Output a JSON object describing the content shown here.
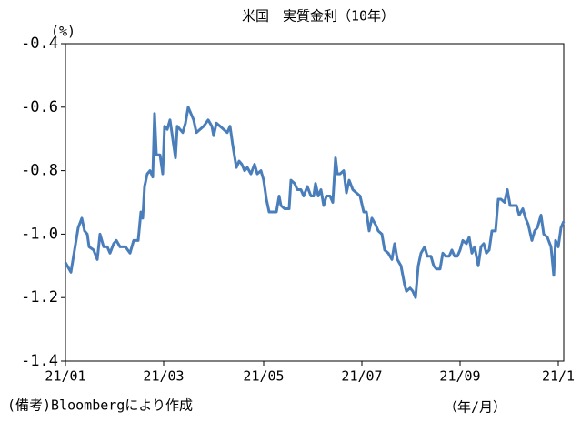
{
  "chart_data": {
    "type": "line",
    "title": "米国　実質金利（10年）",
    "y_label": "(%)",
    "x_label": "（年/月）",
    "note": "(備考)Bloombergにより作成",
    "color": "#4a7ebb",
    "x": [
      0,
      6,
      10,
      14,
      18,
      21,
      24,
      26,
      31,
      35,
      38,
      42,
      46,
      49,
      53,
      56,
      60,
      66,
      71,
      75,
      80,
      83,
      85,
      87,
      90,
      93,
      96,
      98,
      100,
      104,
      107,
      109,
      112,
      115,
      118,
      121,
      123,
      126,
      129,
      132,
      135,
      138,
      141,
      144,
      148,
      152,
      157,
      161,
      163,
      166,
      170,
      174,
      178,
      181,
      184,
      188,
      191,
      194,
      197,
      200,
      204,
      208,
      211,
      215,
      218,
      221,
      224,
      228,
      232,
      235,
      237,
      241,
      246,
      248,
      252,
      255,
      259,
      262,
      266,
      270,
      273,
      275,
      278,
      281,
      284,
      287,
      291,
      294,
      297,
      299,
      302,
      306,
      309,
      312,
      316,
      320,
      324,
      328,
      331,
      334,
      337,
      341,
      344,
      348,
      351,
      355,
      359,
      362,
      365,
      369,
      373,
      375,
      379,
      382,
      385,
      388,
      391,
      395,
      398,
      402,
      405,
      408,
      412,
      415,
      418,
      422,
      425,
      428,
      431,
      434,
      437,
      441,
      444,
      447,
      450,
      454,
      457,
      460,
      463,
      466,
      469,
      473,
      476,
      479,
      483,
      486,
      489,
      493,
      496,
      499,
      503,
      506,
      509,
      513,
      516,
      519,
      523,
      526,
      530,
      534,
      537,
      539,
      542,
      545,
      548
    ],
    "values": [
      -1.09,
      -1.12,
      -1.05,
      -0.98,
      -0.95,
      -0.99,
      -1.0,
      -1.04,
      -1.05,
      -1.08,
      -1.0,
      -1.04,
      -1.04,
      -1.06,
      -1.03,
      -1.02,
      -1.04,
      -1.04,
      -1.06,
      -1.02,
      -1.02,
      -0.93,
      -0.95,
      -0.85,
      -0.81,
      -0.8,
      -0.82,
      -0.62,
      -0.75,
      -0.75,
      -0.81,
      -0.66,
      -0.67,
      -0.64,
      -0.7,
      -0.76,
      -0.66,
      -0.67,
      -0.68,
      -0.65,
      -0.6,
      -0.62,
      -0.64,
      -0.68,
      -0.67,
      -0.66,
      -0.64,
      -0.66,
      -0.69,
      -0.65,
      -0.66,
      -0.67,
      -0.68,
      -0.66,
      -0.72,
      -0.79,
      -0.77,
      -0.78,
      -0.8,
      -0.79,
      -0.81,
      -0.78,
      -0.81,
      -0.8,
      -0.83,
      -0.89,
      -0.93,
      -0.93,
      -0.93,
      -0.88,
      -0.91,
      -0.92,
      -0.92,
      -0.83,
      -0.84,
      -0.86,
      -0.86,
      -0.88,
      -0.85,
      -0.88,
      -0.88,
      -0.84,
      -0.88,
      -0.86,
      -0.91,
      -0.88,
      -0.88,
      -0.9,
      -0.76,
      -0.81,
      -0.81,
      -0.8,
      -0.87,
      -0.83,
      -0.86,
      -0.87,
      -0.88,
      -0.93,
      -0.93,
      -0.99,
      -0.95,
      -0.97,
      -0.99,
      -1.0,
      -1.05,
      -1.06,
      -1.08,
      -1.03,
      -1.08,
      -1.1,
      -1.16,
      -1.18,
      -1.17,
      -1.18,
      -1.2,
      -1.1,
      -1.06,
      -1.04,
      -1.07,
      -1.07,
      -1.1,
      -1.11,
      -1.11,
      -1.06,
      -1.07,
      -1.07,
      -1.05,
      -1.07,
      -1.07,
      -1.05,
      -1.02,
      -1.03,
      -1.01,
      -1.06,
      -1.04,
      -1.1,
      -1.04,
      -1.03,
      -1.06,
      -1.05,
      -0.99,
      -0.99,
      -0.89,
      -0.89,
      -0.9,
      -0.86,
      -0.91,
      -0.91,
      -0.91,
      -0.94,
      -0.92,
      -0.95,
      -0.97,
      -1.02,
      -0.99,
      -0.98,
      -0.94,
      -1.0,
      -1.01,
      -1.04,
      -1.13,
      -1.02,
      -1.04,
      -0.98,
      -0.96
    ],
    "xlim": [
      0,
      548
    ],
    "xticks": [
      {
        "value": 0,
        "label": "21/01"
      },
      {
        "value": 108,
        "label": "21/03"
      },
      {
        "value": 218,
        "label": "21/05"
      },
      {
        "value": 326,
        "label": "21/07"
      },
      {
        "value": 434,
        "label": "21/09"
      },
      {
        "value": 542,
        "label": "21/1"
      }
    ],
    "ylim": [
      -1.4,
      -0.4
    ],
    "yticks": [
      -1.4,
      -1.2,
      {
        "value": -1,
        "label": "-1.0"
      },
      -0.8,
      -0.6,
      -0.4
    ]
  }
}
